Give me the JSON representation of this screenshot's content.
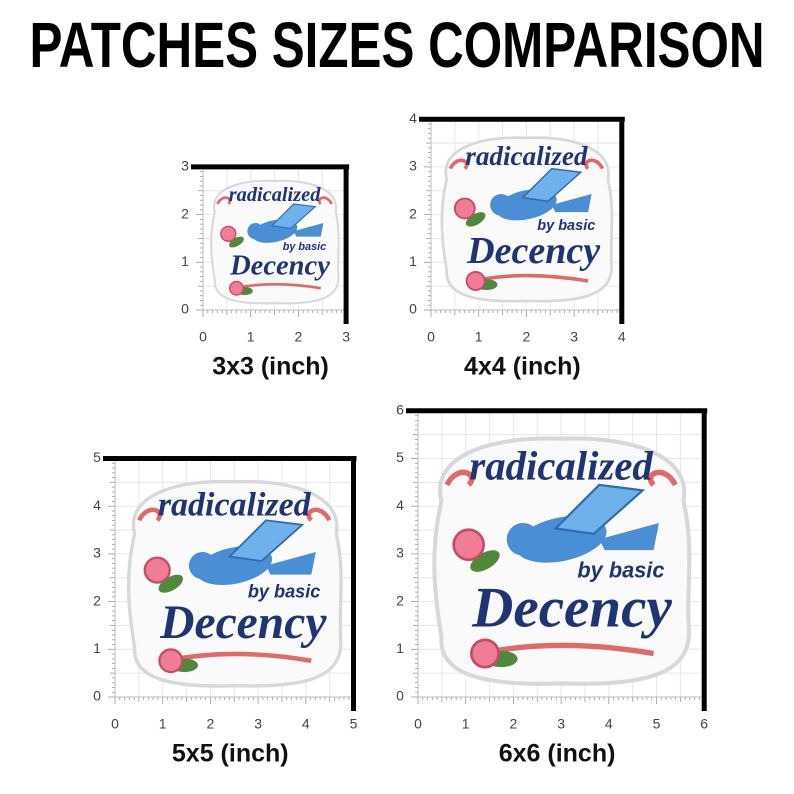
{
  "title": "PATCHES SIZES COMPARISON",
  "patch": {
    "line1": "radicalized",
    "line2": "by basic",
    "line3": "Decency"
  },
  "panels": [
    {
      "label": "3x3 (inch)",
      "ticks": [
        0,
        1,
        2,
        3
      ]
    },
    {
      "label": "4x4 (inch)",
      "ticks": [
        0,
        1,
        2,
        3,
        4
      ]
    },
    {
      "label": "5x5 (inch)",
      "ticks": [
        0,
        1,
        2,
        3,
        4,
        5
      ]
    },
    {
      "label": "6x6 (inch)",
      "ticks": [
        0,
        1,
        2,
        3,
        4,
        5,
        6
      ]
    }
  ]
}
